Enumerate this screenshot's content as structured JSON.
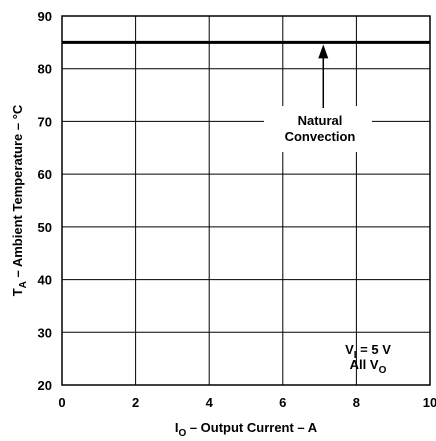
{
  "chart_data": {
    "type": "line",
    "title": "",
    "xlabel": {
      "main": "I",
      "sub": "O",
      "rest": " – Output Current – A"
    },
    "ylabel": {
      "main": "T",
      "sub": "A",
      "rest": " – Ambient Temperature – °C"
    },
    "xlim": [
      0,
      10
    ],
    "ylim": [
      20,
      90
    ],
    "x_ticks": [
      0,
      2,
      4,
      6,
      8,
      10
    ],
    "y_ticks": [
      20,
      30,
      40,
      50,
      60,
      70,
      80,
      90
    ],
    "x_tick_labels": [
      "0",
      "2",
      "4",
      "6",
      "8",
      "10"
    ],
    "y_tick_labels": [
      "20",
      "30",
      "40",
      "50",
      "60",
      "70",
      "80",
      "90"
    ],
    "grid": true,
    "series": [
      {
        "name": "Natural Convection",
        "x": [
          0,
          10
        ],
        "y": [
          85,
          85
        ]
      }
    ],
    "annotations": {
      "curve_label": [
        "Natural",
        "Convection"
      ],
      "arrow_target": {
        "x": 7.1,
        "y": 85
      },
      "conditions": [
        {
          "main": "V",
          "sub": "I",
          "rest": " = 5 V"
        },
        {
          "main": "All  V",
          "sub": "O",
          "rest": ""
        }
      ]
    }
  }
}
